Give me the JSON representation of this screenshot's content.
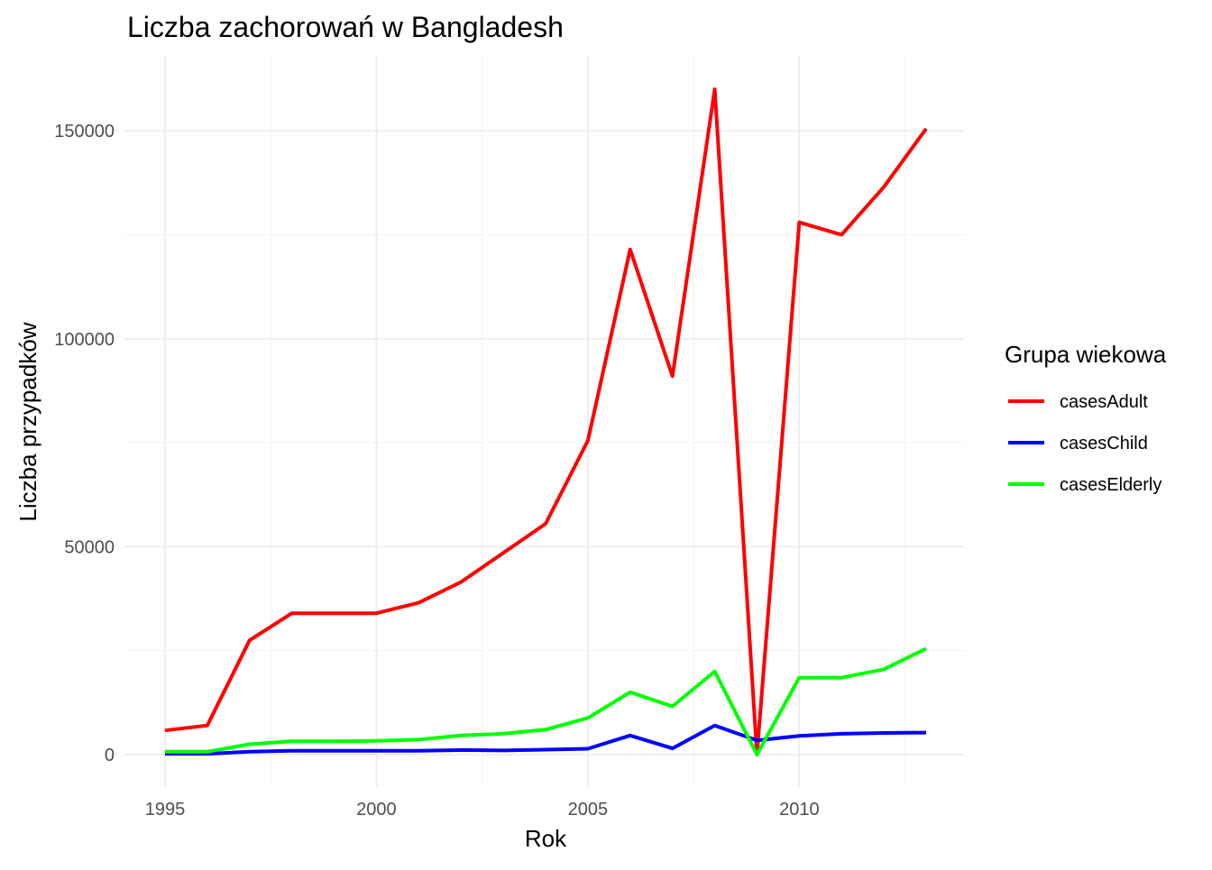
{
  "chart_data": {
    "type": "line",
    "title": "Liczba zachorowań w Bangladesh",
    "xlabel": "Rok",
    "ylabel": "Liczba przypadków",
    "x": [
      1995,
      1996,
      1997,
      1998,
      1999,
      2000,
      2001,
      2002,
      2003,
      2004,
      2005,
      2006,
      2007,
      2008,
      2009,
      2010,
      2011,
      2012,
      2013
    ],
    "xlim": [
      1995,
      2013
    ],
    "ylim": [
      0,
      160000
    ],
    "x_ticks": [
      "1995",
      "2000",
      "2005",
      "2010"
    ],
    "y_ticks": [
      "0",
      "50000",
      "100000",
      "150000"
    ],
    "grid": true,
    "legend": {
      "title": "Grupa wiekowa",
      "position": "right"
    },
    "series": [
      {
        "name": "casesAdult",
        "color": "#ff0000",
        "values": [
          5800,
          7000,
          27500,
          34000,
          34000,
          34000,
          36500,
          41500,
          48500,
          55500,
          75500,
          121500,
          91000,
          160000,
          0,
          128000,
          125000,
          136500,
          150500
        ]
      },
      {
        "name": "casesChild",
        "color": "#0000ff",
        "values": [
          200,
          200,
          700,
          900,
          900,
          900,
          900,
          1100,
          1000,
          1200,
          1400,
          4600,
          1500,
          7000,
          3400,
          4500,
          5000,
          5200,
          5300
        ]
      },
      {
        "name": "casesElderly",
        "color": "#00ff00",
        "values": [
          700,
          700,
          2500,
          3200,
          3200,
          3300,
          3600,
          4600,
          5000,
          6000,
          8800,
          15000,
          11600,
          20000,
          0,
          18500,
          18500,
          20500,
          25500
        ]
      }
    ]
  }
}
